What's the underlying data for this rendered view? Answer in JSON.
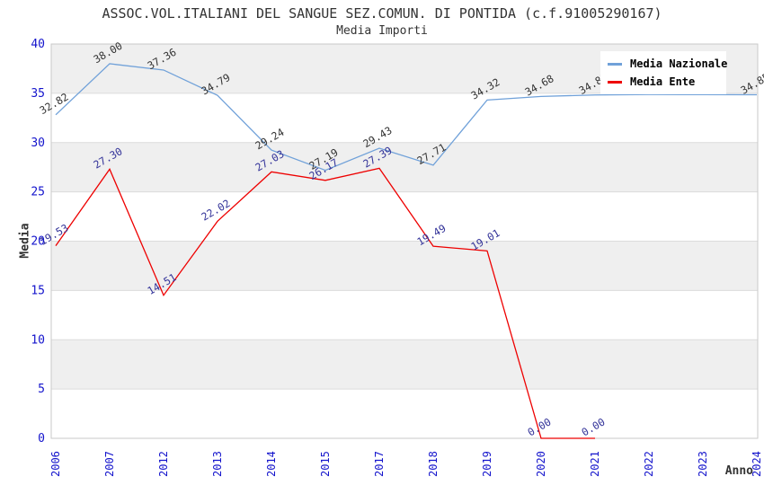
{
  "chart_data": {
    "type": "line",
    "title": "ASSOC.VOL.ITALIANI DEL SANGUE SEZ.COMUN. DI PONTIDA (c.f.91005290167)",
    "subtitle": "Media Importi",
    "xlabel": "Anno",
    "ylabel": "Media",
    "categories": [
      "2006",
      "2007",
      "2012",
      "2013",
      "2014",
      "2015",
      "2017",
      "2018",
      "2019",
      "2020",
      "2021",
      "2022",
      "2023",
      "2024"
    ],
    "ylim": [
      0,
      40
    ],
    "yticks": [
      0,
      5,
      10,
      15,
      20,
      25,
      30,
      35,
      40
    ],
    "grid": "horizontal-bands",
    "legend_position": "top-right",
    "series": [
      {
        "name": "Media Nazionale",
        "color": "#70a1d9",
        "label_color": "#333333",
        "values": [
          32.82,
          38.0,
          37.36,
          34.79,
          29.24,
          27.19,
          29.43,
          27.71,
          34.32,
          34.68,
          34.83,
          34.88,
          34.86,
          34.85
        ],
        "labels": [
          "32.82",
          "38.00",
          "37.36",
          "34.79",
          "29.24",
          "27.19",
          "29.43",
          "27.71",
          "34.32",
          "34.68",
          "34.83",
          "",
          "",
          "34.85"
        ]
      },
      {
        "name": "Media Ente",
        "color": "#ee0000",
        "label_color": "#333399",
        "values": [
          19.53,
          27.3,
          14.51,
          22.02,
          27.03,
          26.17,
          27.39,
          19.49,
          19.01,
          0.0,
          0.0,
          null,
          null,
          null
        ],
        "labels": [
          "19.53",
          "27.30",
          "14.51",
          "22.02",
          "27.03",
          "26.17",
          "27.39",
          "19.49",
          "19.01",
          "0.00",
          "0.00",
          "",
          "",
          ""
        ]
      }
    ]
  },
  "style_colors": {
    "tick_label_blue": "#1414cc",
    "band_gray": "#efefef",
    "gridline": "#dcdcdc",
    "plot_border": "#c9c9c9"
  }
}
